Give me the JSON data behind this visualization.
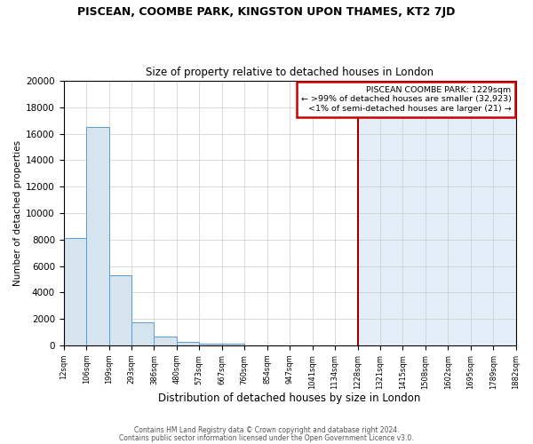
{
  "title": "PISCEAN, COOMBE PARK, KINGSTON UPON THAMES, KT2 7JD",
  "subtitle": "Size of property relative to detached houses in London",
  "xlabel": "Distribution of detached houses by size in London",
  "ylabel": "Number of detached properties",
  "bar_values": [
    8100,
    16500,
    5300,
    1750,
    700,
    300,
    150,
    100,
    30,
    10,
    5,
    3,
    2,
    1,
    0,
    0,
    0,
    0,
    0,
    0
  ],
  "bin_edges": [
    12,
    106,
    199,
    293,
    386,
    480,
    573,
    667,
    760,
    854,
    947,
    1041,
    1134,
    1228,
    1321,
    1415,
    1508,
    1602,
    1695,
    1789,
    1882
  ],
  "bar_color": "#d6e4f0",
  "bar_edge_color": "#5b9bd5",
  "red_line_x": 1229,
  "red_line_color": "#990000",
  "legend_title": "PISCEAN COOMBE PARK: 1229sqm",
  "legend_line1": "← >99% of detached houses are smaller (32,923)",
  "legend_line2": "<1% of semi-detached houses are larger (21) →",
  "legend_box_color": "#cc0000",
  "ylim": [
    0,
    20000
  ],
  "yticks": [
    0,
    2000,
    4000,
    6000,
    8000,
    10000,
    12000,
    14000,
    16000,
    18000,
    20000
  ],
  "footer1": "Contains HM Land Registry data © Crown copyright and database right 2024.",
  "footer2": "Contains public sector information licensed under the Open Government Licence v3.0.",
  "bg_right_color": "#e4eef8",
  "grid_color": "#cccccc"
}
